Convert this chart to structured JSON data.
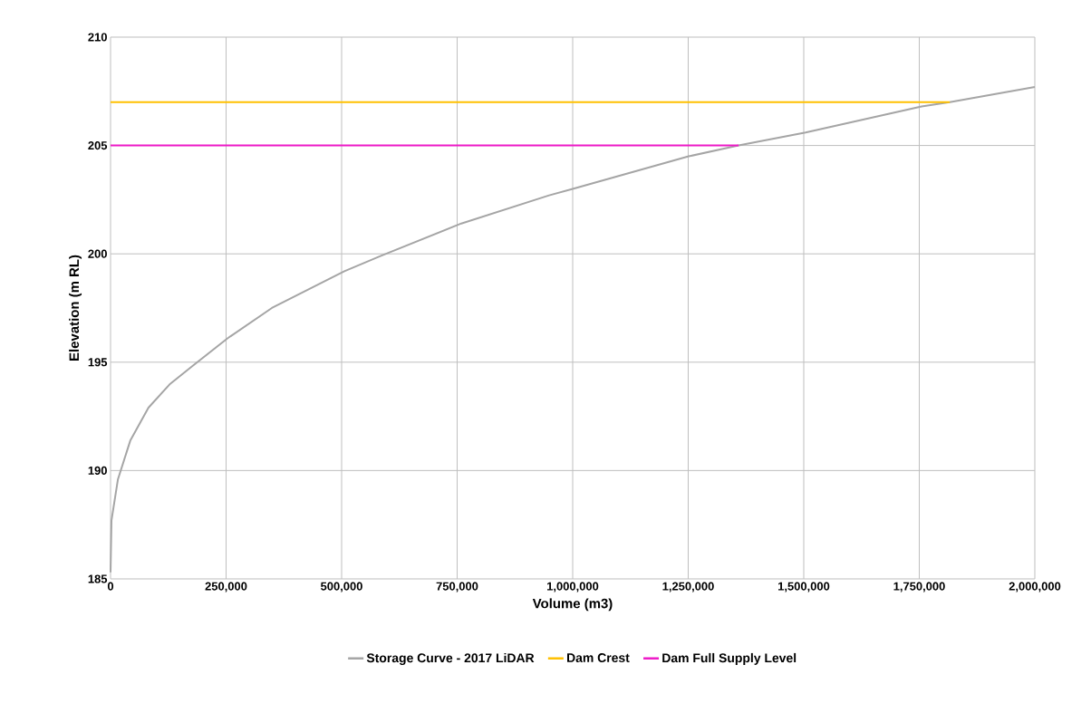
{
  "chart_data": {
    "type": "line",
    "xlabel": "Volume (m3)",
    "ylabel": "Elevation (m RL)",
    "xlim": [
      0,
      2000000
    ],
    "ylim": [
      185,
      210
    ],
    "xticks": [
      0,
      {
        "value": 250000,
        "label": "250,000"
      },
      {
        "value": 500000,
        "label": "500,000"
      },
      {
        "value": 750000,
        "label": "750,000"
      },
      {
        "value": 1000000,
        "label": "1,000,000"
      },
      {
        "value": 1250000,
        "label": "1,250,000"
      },
      {
        "value": 1500000,
        "label": "1,500,000"
      },
      {
        "value": 1750000,
        "label": "1,750,000"
      },
      {
        "value": 2000000,
        "label": "2,000,000"
      }
    ],
    "yticks": [
      185,
      190,
      195,
      200,
      205,
      210
    ],
    "grid": true,
    "legend": "bottom",
    "marker": "none",
    "line_style": "solid",
    "series": [
      {
        "name": "Storage Curve - 2017 LiDAR",
        "color": "#a5a5a5",
        "x": [
          0,
          2000,
          16000,
          43000,
          82000,
          129000,
          176000,
          253000,
          349000,
          506000,
          584000,
          759000,
          949000,
          1000000,
          1251000,
          1359000,
          1504000,
          1755000,
          1816000,
          2000000
        ],
        "values": [
          185.3,
          187.7,
          189.6,
          191.4,
          192.9,
          194.0,
          194.8,
          196.1,
          197.5,
          199.2,
          199.9,
          201.4,
          202.7,
          203.0,
          204.5,
          205.0,
          205.6,
          206.8,
          207.0,
          207.7
        ]
      },
      {
        "name": "Dam Crest",
        "color": "#ffc000",
        "x": [
          0,
          1816000
        ],
        "values": [
          207,
          207
        ]
      },
      {
        "name": "Dam Full Supply Level",
        "color": "#ee1ac8",
        "x": [
          0,
          1359000
        ],
        "values": [
          205,
          205
        ]
      }
    ]
  }
}
